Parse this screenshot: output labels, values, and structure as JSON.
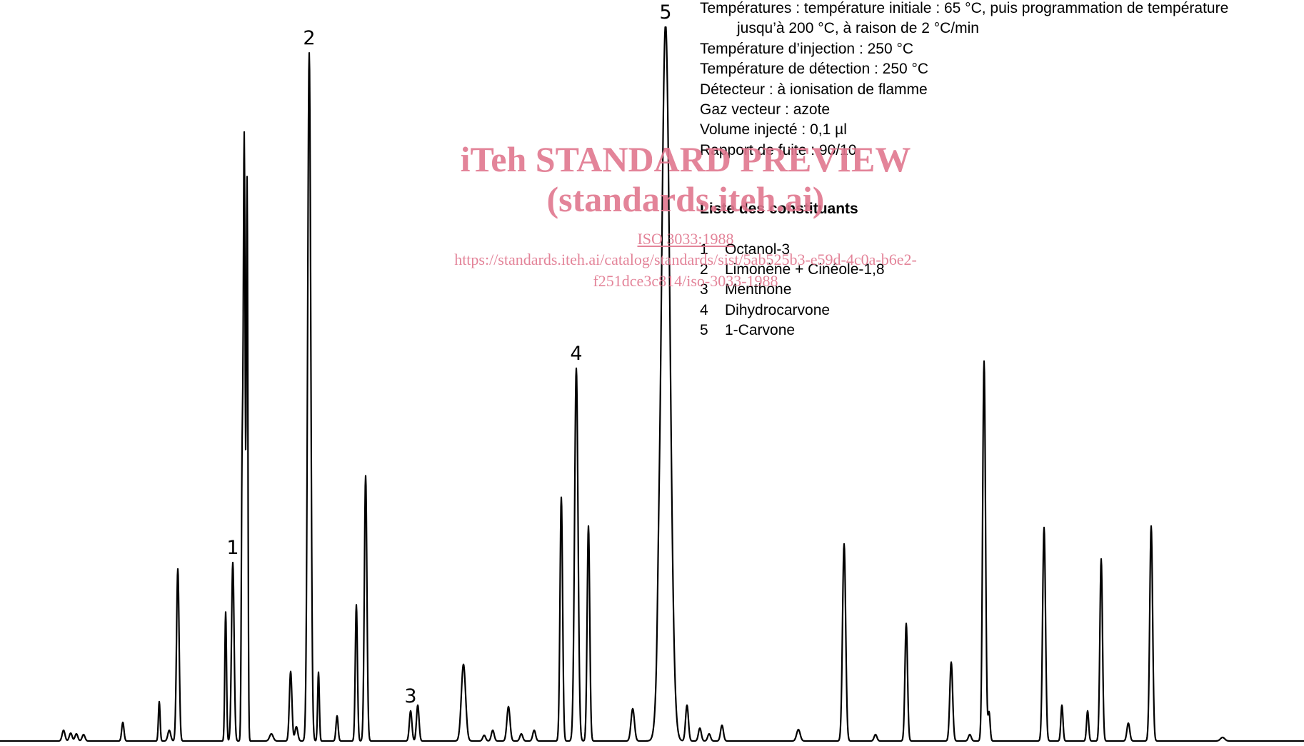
{
  "chart_data": {
    "type": "line",
    "title": "",
    "xlabel": "",
    "ylabel": "",
    "grid": false,
    "ylim": [
      0,
      1000
    ],
    "baseline": 4,
    "x_range": [
      0,
      1826
    ],
    "peak_labels": [
      {
        "label": "1",
        "peak_index": 1
      },
      {
        "label": "2",
        "peak_index": 2
      },
      {
        "label": "3",
        "peak_index": 3
      },
      {
        "label": "4",
        "peak_index": 4
      },
      {
        "label": "5",
        "peak_index": 5
      }
    ],
    "peaks": [
      {
        "t": 89,
        "h": 15,
        "w": 2.0
      },
      {
        "t": 99,
        "h": 11,
        "w": 2.0
      },
      {
        "t": 107,
        "h": 10,
        "w": 2.0
      },
      {
        "t": 117,
        "h": 9,
        "w": 2.0
      },
      {
        "t": 172,
        "h": 26,
        "w": 1.6
      },
      {
        "t": 223,
        "h": 55,
        "w": 1.2
      },
      {
        "t": 237,
        "h": 15,
        "w": 2.0
      },
      {
        "t": 249,
        "h": 240,
        "w": 1.8
      },
      {
        "t": 316,
        "h": 180,
        "w": 1.2
      },
      {
        "t": 326,
        "h": 249,
        "w": 1.8
      },
      {
        "t": 339,
        "h": 358,
        "w": 1.1
      },
      {
        "t": 342,
        "h": 840,
        "w": 1.3
      },
      {
        "t": 346,
        "h": 780,
        "w": 1.1
      },
      {
        "t": 380,
        "h": 10,
        "w": 2.5
      },
      {
        "t": 407,
        "h": 97,
        "w": 1.8
      },
      {
        "t": 415,
        "h": 20,
        "w": 2.0
      },
      {
        "t": 433,
        "h": 960,
        "w": 2.2
      },
      {
        "t": 446,
        "h": 96,
        "w": 1.2
      },
      {
        "t": 472,
        "h": 35,
        "w": 1.5
      },
      {
        "t": 499,
        "h": 190,
        "w": 1.5
      },
      {
        "t": 512,
        "h": 370,
        "w": 1.8
      },
      {
        "t": 575,
        "h": 42,
        "w": 1.8
      },
      {
        "t": 585,
        "h": 50,
        "w": 1.8
      },
      {
        "t": 649,
        "h": 107,
        "w": 3.0
      },
      {
        "t": 678,
        "h": 8,
        "w": 2.0
      },
      {
        "t": 690,
        "h": 15,
        "w": 2.0
      },
      {
        "t": 712,
        "h": 48,
        "w": 2.2
      },
      {
        "t": 730,
        "h": 10,
        "w": 2.0
      },
      {
        "t": 748,
        "h": 15,
        "w": 2.0
      },
      {
        "t": 786,
        "h": 340,
        "w": 1.8
      },
      {
        "t": 807,
        "h": 520,
        "w": 2.4
      },
      {
        "t": 824,
        "h": 300,
        "w": 1.8
      },
      {
        "t": 886,
        "h": 45,
        "w": 2.4
      },
      {
        "t": 922,
        "h": 40,
        "w": 1.5
      },
      {
        "t": 932,
        "h": 1000,
        "w": 6.0
      },
      {
        "t": 962,
        "h": 50,
        "w": 2.0
      },
      {
        "t": 980,
        "h": 18,
        "w": 2.0
      },
      {
        "t": 993,
        "h": 10,
        "w": 2.0
      },
      {
        "t": 1011,
        "h": 22,
        "w": 2.0
      },
      {
        "t": 1118,
        "h": 16,
        "w": 2.5
      },
      {
        "t": 1182,
        "h": 275,
        "w": 2.2
      },
      {
        "t": 1226,
        "h": 9,
        "w": 2.0
      },
      {
        "t": 1269,
        "h": 164,
        "w": 1.8
      },
      {
        "t": 1332,
        "h": 110,
        "w": 2.0
      },
      {
        "t": 1358,
        "h": 9,
        "w": 2.0
      },
      {
        "t": 1378,
        "h": 530,
        "w": 2.0
      },
      {
        "t": 1385,
        "h": 40,
        "w": 1.5
      },
      {
        "t": 1462,
        "h": 298,
        "w": 2.0
      },
      {
        "t": 1487,
        "h": 50,
        "w": 1.5
      },
      {
        "t": 1523,
        "h": 42,
        "w": 1.5
      },
      {
        "t": 1542,
        "h": 254,
        "w": 1.8
      },
      {
        "t": 1580,
        "h": 25,
        "w": 2.0
      },
      {
        "t": 1612,
        "h": 300,
        "w": 2.0
      },
      {
        "t": 1712,
        "h": 5,
        "w": 3.0
      }
    ]
  },
  "conditions": {
    "line1": "Températures : température initiale : 65 °C, puis programmation de température",
    "line2": "jusqu’à 200 °C, à raison de 2 °C/min",
    "line3": "Température d’injection : 250 °C",
    "line4": "Température de détection : 250 °C",
    "line5": "Détecteur : à ionisation de flamme",
    "line6": "Gaz vecteur : azote",
    "line7": "Volume injecté : 0,1 µl",
    "line8": "Rapport de fuite : 90/10"
  },
  "constituents": {
    "title": "Liste des constituants",
    "items": [
      {
        "num": "1",
        "name": "Octanol-3"
      },
      {
        "num": "2",
        "name": "Limonène + Cinéole-1,8"
      },
      {
        "num": "3",
        "name": "Menthone"
      },
      {
        "num": "4",
        "name": "Dihydrocarvone"
      },
      {
        "num": "5",
        "name": "1-Carvone"
      }
    ]
  },
  "watermark": {
    "line1": "iTeh STANDARD PREVIEW",
    "line2": "(standards.iteh.ai)",
    "line3": "ISO 3033:1988",
    "line4": "https://standards.iteh.ai/catalog/standards/sist/5ab525b3-e59d-4c0a-b6e2-",
    "line5": "f251dce3c814/iso-3033-1988",
    "color": "#e1778f"
  }
}
